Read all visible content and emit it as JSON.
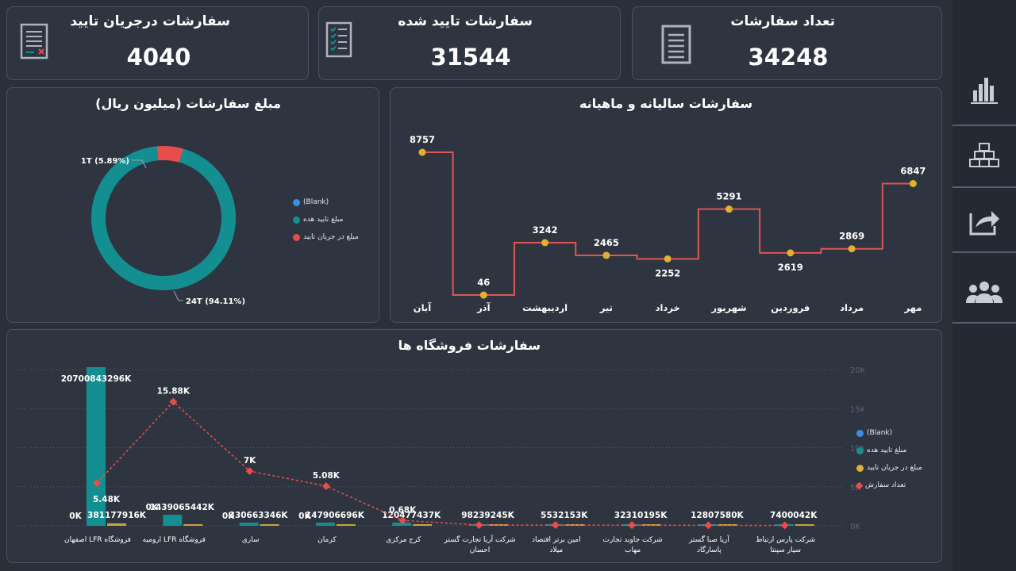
{
  "kpis": [
    {
      "title": "تعداد سفارشات",
      "value": "34248"
    },
    {
      "title": "سفارشات تایید شده",
      "value": "31544"
    },
    {
      "title": "سفارشات درجریان تایید",
      "value": "4040"
    }
  ],
  "donut": {
    "title": "مبلغ سفارشات (میلیون ریال)",
    "legend": [
      "(Blank)",
      "مبلغ تایید هده",
      "مبلغ در جریان تایید"
    ],
    "legend_colors": [
      "#3b8fe3",
      "#138f91",
      "#e84c4c"
    ],
    "labels": {
      "small": "1T (5.89%)",
      "large": "24T (94.11%)"
    }
  },
  "monthly": {
    "title": "سفارشات سالیانه و ماهیانه"
  },
  "stores": {
    "title": "سفارشات فروشگاه ها",
    "legend": [
      "(Blank)",
      "مبلغ تایید هده",
      "مبلغ در جریان تایید",
      "تعداد سفارش"
    ],
    "legend_colors": [
      "#3b8fe3",
      "#138f91",
      "#e0b030",
      "#e84c4c"
    ]
  },
  "chart_data": [
    {
      "type": "pie",
      "title": "مبلغ سفارشات (میلیون ریال)",
      "categories": [
        "مبلغ تایید هده",
        "مبلغ در جریان تایید"
      ],
      "values": [
        94.11,
        5.89
      ],
      "data_labels": [
        "24T (94.11%)",
        "1T (5.89%)"
      ],
      "colors": [
        "#138f91",
        "#e84c4c"
      ],
      "legend": "right"
    },
    {
      "type": "line",
      "title": "سفارشات سالیانه و ماهیانه",
      "categories": [
        "آبان",
        "آذر",
        "اردیبهشت",
        "تیر",
        "خرداد",
        "شهریور",
        "فروردین",
        "مرداد",
        "مهر"
      ],
      "values": [
        8757,
        46,
        3242,
        2465,
        2252,
        5291,
        2619,
        2869,
        6847
      ],
      "line_color": "#e05555",
      "marker_color": "#e0b030",
      "ylim": [
        0,
        9000
      ]
    },
    {
      "type": "bar",
      "title": "سفارشات فروشگاه ها",
      "categories": [
        "فروشگاه LFR اصفهان",
        "فروشگاه LFR ارومیه",
        "ساری",
        "کرمان",
        "کرج مرکزی",
        "شرکت آریا تجارت گستر احسان",
        "امین برتر اقتصاد میلاد",
        "شرکت جاوید تجارت مهاب",
        "آریا صبا گستر پاسارگاد",
        "شرکت پارس ارتباط سیار سپنتا"
      ],
      "series": [
        {
          "name": "(Blank)",
          "values": [
            0,
            0,
            0,
            0,
            null,
            null,
            null,
            null,
            null,
            null
          ],
          "labels": [
            "0K",
            "0K",
            "0K",
            "0K",
            "",
            "",
            "",
            "",
            "",
            ""
          ]
        },
        {
          "name": "مبلغ تایید هده",
          "values": [
            20700843296,
            1439065442,
            330663346,
            147906696,
            120477437,
            98239245,
            5532153,
            32310195,
            12807580,
            7400042
          ],
          "labels": [
            "20700843296K",
            "1439065442K",
            "330663346K",
            "147906696K",
            "120477437K",
            "98239245K",
            "5532153K",
            "32310195K",
            "12807580K",
            "7400042K"
          ]
        },
        {
          "name": "مبلغ در جریان تایید",
          "values": [
            381177916,
            0,
            0,
            0,
            0,
            0,
            0,
            0,
            0,
            0
          ],
          "labels": [
            "381177916K",
            "",
            "",
            "",
            "",
            "",
            "",
            "",
            "",
            ""
          ]
        },
        {
          "name": "تعداد سفارش",
          "axis": "right",
          "values": [
            5480,
            15880,
            7000,
            5080,
            680,
            100,
            100,
            80,
            60,
            40
          ],
          "labels": [
            "5.48K",
            "15.88K",
            "7K",
            "5.08K",
            "0.68K",
            "",
            "",
            "",
            "",
            ""
          ]
        }
      ],
      "y2_ticks": [
        "0K",
        "5K",
        "10K",
        "15K",
        "20K"
      ],
      "y2lim": [
        0,
        20000
      ],
      "legend": "right"
    }
  ]
}
